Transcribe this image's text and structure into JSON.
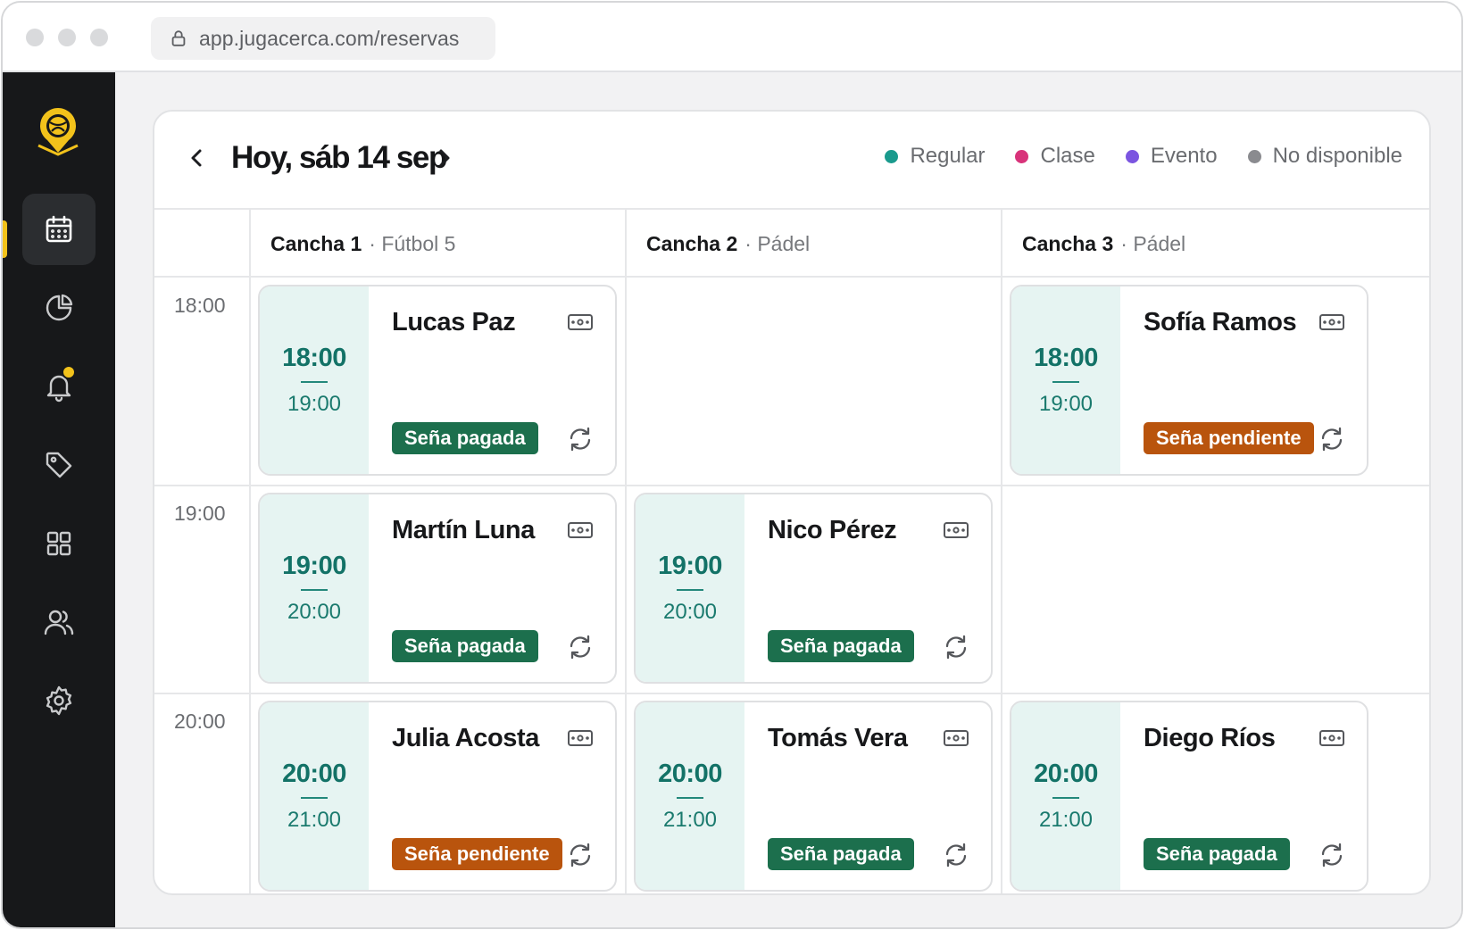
{
  "browser": {
    "url": "app.jugacerca.com/reservas"
  },
  "sidebar": {
    "items": [
      {
        "name": "calendar-icon",
        "active": true
      },
      {
        "name": "chart-pie-icon",
        "active": false
      },
      {
        "name": "bell-icon",
        "active": false,
        "has_notification": true
      },
      {
        "name": "tag-icon",
        "active": false
      },
      {
        "name": "grid-icon",
        "active": false
      },
      {
        "name": "users-icon",
        "active": false
      },
      {
        "name": "gear-icon",
        "active": false
      }
    ]
  },
  "header": {
    "date_title": "Hoy, sáb 14 sep",
    "legend": [
      {
        "label": "Regular",
        "color": "#1a9a8d"
      },
      {
        "label": "Clase",
        "color": "#d8337a"
      },
      {
        "label": "Evento",
        "color": "#7b55e0"
      },
      {
        "label": "No disponible",
        "color": "#8a8b8f"
      }
    ]
  },
  "schedule": {
    "courts": [
      {
        "name": "Cancha 1",
        "sport": "· Fútbol 5"
      },
      {
        "name": "Cancha 2",
        "sport": "· Pádel"
      },
      {
        "name": "Cancha 3",
        "sport": "· Pádel"
      }
    ],
    "times": [
      "18:00",
      "19:00",
      "20:00"
    ],
    "bookings": [
      {
        "court": 0,
        "slot": 0,
        "name": "Lucas Paz",
        "start": "18:00",
        "end": "19:00",
        "status": "Seña pagada",
        "status_type": "paid"
      },
      {
        "court": 2,
        "slot": 0,
        "name": "Sofía Ramos",
        "start": "18:00",
        "end": "19:00",
        "status": "Seña pendiente",
        "status_type": "pending"
      },
      {
        "court": 0,
        "slot": 1,
        "name": "Martín Luna",
        "start": "19:00",
        "end": "20:00",
        "status": "Seña pagada",
        "status_type": "paid"
      },
      {
        "court": 1,
        "slot": 1,
        "name": "Nico Pérez",
        "start": "19:00",
        "end": "20:00",
        "status": "Seña pagada",
        "status_type": "paid"
      },
      {
        "court": 0,
        "slot": 2,
        "name": "Julia Acosta",
        "start": "20:00",
        "end": "21:00",
        "status": "Seña pendiente",
        "status_type": "pending"
      },
      {
        "court": 1,
        "slot": 2,
        "name": "Tomás Vera",
        "start": "20:00",
        "end": "21:00",
        "status": "Seña pagada",
        "status_type": "paid"
      },
      {
        "court": 2,
        "slot": 2,
        "name": "Diego Ríos",
        "start": "20:00",
        "end": "21:00",
        "status": "Seña pagada",
        "status_type": "paid"
      }
    ]
  },
  "colors": {
    "brand_yellow": "#f2c21b",
    "sidebar_bg": "#17181a",
    "time_block_bg": "#e6f4f2",
    "time_text": "#137267",
    "badge_paid": "#1c6f4d",
    "badge_pending": "#b9540d"
  }
}
